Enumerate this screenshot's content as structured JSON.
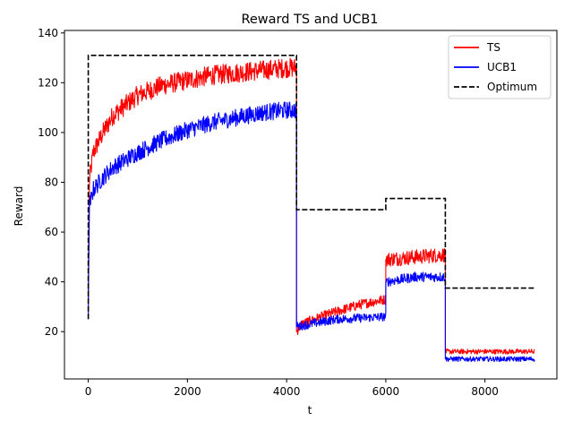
{
  "chart_data": {
    "type": "line",
    "title": "Reward TS and UCB1",
    "xlabel": "t",
    "ylabel": "Reward",
    "xlim": [
      -480,
      9450
    ],
    "ylim": [
      1,
      141
    ],
    "xticks": [
      0,
      2000,
      4000,
      6000,
      8000
    ],
    "yticks": [
      20,
      40,
      60,
      80,
      100,
      120,
      140
    ],
    "grid": false,
    "legend_position": "top-right",
    "series": [
      {
        "name": "TS",
        "color": "#ff0000",
        "style": "solid",
        "segments": [
          {
            "x_start": 0,
            "x_end": 4200,
            "points": [
              [
                0,
                33
              ],
              [
                20,
                80
              ],
              [
                100,
                92
              ],
              [
                300,
                100
              ],
              [
                500,
                107
              ],
              [
                1000,
                115
              ],
              [
                1500,
                119
              ],
              [
                2000,
                121
              ],
              [
                2500,
                123
              ],
              [
                3000,
                124
              ],
              [
                3500,
                125
              ],
              [
                4000,
                126
              ],
              [
                4200,
                126
              ]
            ],
            "noise": 4
          },
          {
            "x_start": 4200,
            "x_end": 6000,
            "points": [
              [
                4200,
                20
              ],
              [
                4300,
                23
              ],
              [
                4700,
                26
              ],
              [
                5000,
                28
              ],
              [
                5500,
                31
              ],
              [
                6000,
                33
              ]
            ],
            "noise": 2
          },
          {
            "x_start": 6000,
            "x_end": 7200,
            "points": [
              [
                6000,
                49
              ],
              [
                6600,
                50
              ],
              [
                7200,
                51
              ]
            ],
            "noise": 3
          },
          {
            "x_start": 7200,
            "x_end": 9000,
            "points": [
              [
                7200,
                12
              ],
              [
                9000,
                12
              ]
            ],
            "noise": 1
          }
        ]
      },
      {
        "name": "UCB1",
        "color": "#0000ff",
        "style": "solid",
        "segments": [
          {
            "x_start": 0,
            "x_end": 4200,
            "points": [
              [
                0,
                25
              ],
              [
                20,
                70
              ],
              [
                100,
                77
              ],
              [
                300,
                82
              ],
              [
                500,
                86
              ],
              [
                1000,
                92
              ],
              [
                1500,
                97
              ],
              [
                2000,
                101
              ],
              [
                2500,
                104
              ],
              [
                3000,
                106
              ],
              [
                3500,
                108
              ],
              [
                4000,
                109
              ],
              [
                4200,
                109
              ]
            ],
            "noise": 3.5
          },
          {
            "x_start": 4200,
            "x_end": 6000,
            "points": [
              [
                4200,
                22
              ],
              [
                5000,
                25
              ],
              [
                6000,
                26
              ]
            ],
            "noise": 1.8
          },
          {
            "x_start": 6000,
            "x_end": 7200,
            "points": [
              [
                6000,
                40
              ],
              [
                6600,
                42
              ],
              [
                7200,
                42
              ]
            ],
            "noise": 2
          },
          {
            "x_start": 7200,
            "x_end": 9000,
            "points": [
              [
                7200,
                9
              ],
              [
                9000,
                9
              ]
            ],
            "noise": 1
          }
        ]
      },
      {
        "name": "Optimum",
        "color": "#000000",
        "style": "dashed",
        "points": [
          [
            0,
            25
          ],
          [
            0,
            131
          ],
          [
            4200,
            131
          ],
          [
            4200,
            69
          ],
          [
            6000,
            69
          ],
          [
            6000,
            73.5
          ],
          [
            7200,
            73.5
          ],
          [
            7200,
            37.5
          ],
          [
            9000,
            37.5
          ]
        ]
      }
    ]
  }
}
